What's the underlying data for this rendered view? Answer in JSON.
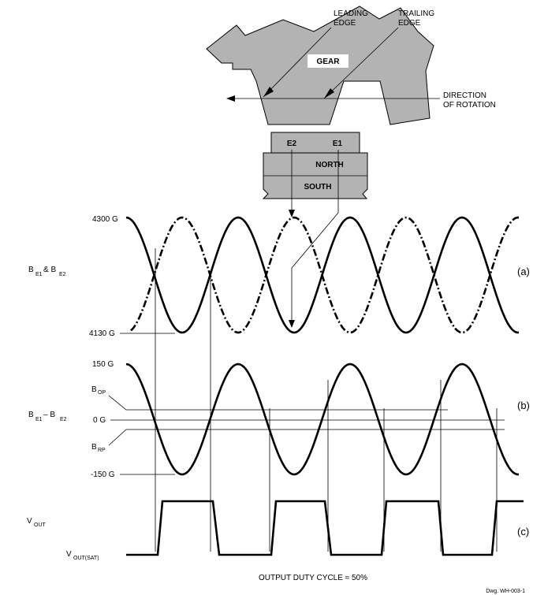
{
  "gear": {
    "leading_edge": [
      "LEADING",
      "EDGE"
    ],
    "trailing_edge": [
      "TRAILING",
      "EDGE"
    ],
    "label": "GEAR",
    "direction": [
      "DIRECTION",
      "OF ROTATION"
    ]
  },
  "sensor": {
    "e2": "E2",
    "e1": "E1",
    "north": "NORTH",
    "south": "SOUTH"
  },
  "panel_a": {
    "top_label": "4300 G",
    "bottom_label": "4130 G",
    "y_label_b": "B",
    "y_label_sub1": "E1",
    "y_label_amp": "& B",
    "y_label_sub2": "E2",
    "tag": "(a)"
  },
  "panel_b": {
    "top_label": "150 G",
    "bop_b": "B",
    "bop_sub": "OP",
    "zero_label": "0 G",
    "brp_b": "B",
    "brp_sub": "RP",
    "bottom_label": "-150 G",
    "y_label_b": "B",
    "y_label_sub1": "E1",
    "y_label_minus": "– B",
    "y_label_sub2": "E2",
    "tag": "(b)"
  },
  "panel_c": {
    "vout_v": "V",
    "vout_sub": "OUT",
    "vsat_v": "V",
    "vsat_sub": "OUT(SAT)",
    "tag": "(c)"
  },
  "caption": "OUTPUT DUTY CYCLE ≈ 50%",
  "dwg": "Dwg. WH-003-1"
}
